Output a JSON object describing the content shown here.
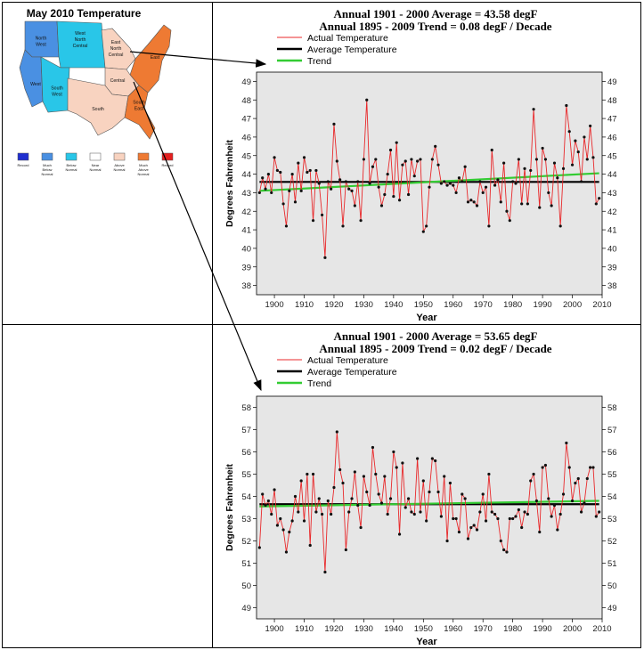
{
  "map": {
    "title": "May 2010 Temperature",
    "regions": [
      {
        "label": "North West",
        "color": "#4a90e2"
      },
      {
        "label": "West North Central",
        "color": "#29c6e8"
      },
      {
        "label": "East North Central",
        "color": "#f8d3c0"
      },
      {
        "label": "East",
        "color": "#ee7a33"
      },
      {
        "label": "West",
        "color": "#4a90e2"
      },
      {
        "label": "South West",
        "color": "#29c6e8"
      },
      {
        "label": "Central",
        "color": "#f8d3c0"
      },
      {
        "label": "South",
        "color": "#f8d3c0"
      },
      {
        "label": "South East",
        "color": "#ee7a33"
      }
    ],
    "legend": [
      {
        "label": "Record",
        "color": "#1f2fcf"
      },
      {
        "label": "Much Below Normal",
        "color": "#4a90e2"
      },
      {
        "label": "Below Normal",
        "color": "#29c6e8"
      },
      {
        "label": "Near Normal",
        "color": "#ffffff"
      },
      {
        "label": "Above Normal",
        "color": "#f8d3c0"
      },
      {
        "label": "Much Above Normal",
        "color": "#ee7a33"
      },
      {
        "label": "Record",
        "color": "#e52020"
      }
    ]
  },
  "chart_data": [
    {
      "type": "line",
      "title_line1": "Annual 1901 - 2000 Average = 43.58 degF",
      "title_line2": "Annual 1895 - 2009 Trend = 0.08 degF / Decade",
      "xlabel": "Year",
      "ylabel": "Degrees Fahrenheit",
      "xlim": [
        1894,
        2010
      ],
      "ylim": [
        37.5,
        49.5
      ],
      "xticks": [
        1900,
        1910,
        1920,
        1930,
        1940,
        1950,
        1960,
        1970,
        1980,
        1990,
        2000,
        2010
      ],
      "yticks": [
        38,
        39,
        40,
        41,
        42,
        43,
        44,
        45,
        46,
        47,
        48,
        49
      ],
      "legend": [
        "Actual Temperature",
        "Average Temperature",
        "Trend"
      ],
      "colors": {
        "actual": "#e8292b",
        "average": "#000000",
        "trend": "#33cc33",
        "plot_bg": "#e6e6e6"
      },
      "x": [
        1895,
        1896,
        1897,
        1898,
        1899,
        1900,
        1901,
        1902,
        1903,
        1904,
        1905,
        1906,
        1907,
        1908,
        1909,
        1910,
        1911,
        1912,
        1913,
        1914,
        1915,
        1916,
        1917,
        1918,
        1919,
        1920,
        1921,
        1922,
        1923,
        1924,
        1925,
        1926,
        1927,
        1928,
        1929,
        1930,
        1931,
        1932,
        1933,
        1934,
        1935,
        1936,
        1937,
        1938,
        1939,
        1940,
        1941,
        1942,
        1943,
        1944,
        1945,
        1946,
        1947,
        1948,
        1949,
        1950,
        1951,
        1952,
        1953,
        1954,
        1955,
        1956,
        1957,
        1958,
        1959,
        1960,
        1961,
        1962,
        1963,
        1964,
        1965,
        1966,
        1967,
        1968,
        1969,
        1970,
        1971,
        1972,
        1973,
        1974,
        1975,
        1976,
        1977,
        1978,
        1979,
        1980,
        1981,
        1982,
        1983,
        1984,
        1985,
        1986,
        1987,
        1988,
        1989,
        1990,
        1991,
        1992,
        1993,
        1994,
        1995,
        1996,
        1997,
        1998,
        1999,
        2000,
        2001,
        2002,
        2003,
        2004,
        2005,
        2006,
        2007,
        2008,
        2009
      ],
      "series": [
        {
          "name": "Actual Temperature",
          "values": [
            43.0,
            43.8,
            43.2,
            44.0,
            43.0,
            44.9,
            44.2,
            44.1,
            42.4,
            41.2,
            43.1,
            44.0,
            42.5,
            44.6,
            43.1,
            44.9,
            44.1,
            44.2,
            41.5,
            44.2,
            43.5,
            41.8,
            39.5,
            43.6,
            43.2,
            46.7,
            44.7,
            43.7,
            41.2,
            43.6,
            43.2,
            43.1,
            42.3,
            43.6,
            41.5,
            44.8,
            48.0,
            43.5,
            44.4,
            44.8,
            43.3,
            42.3,
            42.9,
            44.0,
            45.3,
            42.8,
            45.7,
            42.6,
            44.5,
            44.7,
            42.9,
            44.8,
            43.9,
            44.7,
            44.8,
            40.9,
            41.2,
            43.3,
            44.8,
            45.5,
            44.5,
            43.5,
            43.6,
            43.4,
            43.5,
            43.4,
            43.0,
            43.8,
            43.6,
            44.4,
            42.5,
            42.6,
            42.5,
            42.3,
            43.6,
            43.0,
            43.3,
            41.2,
            45.3,
            43.4,
            43.7,
            42.5,
            44.6,
            42.0,
            41.5,
            43.6,
            43.5,
            44.8,
            42.4,
            44.3,
            42.4,
            44.2,
            47.5,
            44.8,
            42.2,
            45.4,
            44.8,
            43.0,
            42.3,
            44.6,
            43.8,
            41.2,
            44.3,
            47.7,
            46.3,
            44.5,
            45.8,
            45.2,
            43.6,
            46.0,
            44.8,
            46.6,
            44.9,
            42.4,
            42.7
          ]
        },
        {
          "name": "Average Temperature",
          "value": 43.58
        },
        {
          "name": "Trend",
          "start": 43.1,
          "end": 44.05
        }
      ]
    },
    {
      "type": "line",
      "title_line1": "Annual 1901 - 2000 Average = 53.65 degF",
      "title_line2": "Annual 1895 - 2009 Trend = 0.02 degF / Decade",
      "xlabel": "Year",
      "ylabel": "Degrees Fahrenheit",
      "xlim": [
        1894,
        2010
      ],
      "ylim": [
        48.5,
        58.5
      ],
      "xticks": [
        1900,
        1910,
        1920,
        1930,
        1940,
        1950,
        1960,
        1970,
        1980,
        1990,
        2000,
        2010
      ],
      "yticks": [
        49,
        50,
        51,
        52,
        53,
        54,
        55,
        56,
        57,
        58
      ],
      "legend": [
        "Actual Temperature",
        "Average Temperature",
        "Trend"
      ],
      "colors": {
        "actual": "#e8292b",
        "average": "#000000",
        "trend": "#33cc33",
        "plot_bg": "#e6e6e6"
      },
      "x": [
        1895,
        1896,
        1897,
        1898,
        1899,
        1900,
        1901,
        1902,
        1903,
        1904,
        1905,
        1906,
        1907,
        1908,
        1909,
        1910,
        1911,
        1912,
        1913,
        1914,
        1915,
        1916,
        1917,
        1918,
        1919,
        1920,
        1921,
        1922,
        1923,
        1924,
        1925,
        1926,
        1927,
        1928,
        1929,
        1930,
        1931,
        1932,
        1933,
        1934,
        1935,
        1936,
        1937,
        1938,
        1939,
        1940,
        1941,
        1942,
        1943,
        1944,
        1945,
        1946,
        1947,
        1948,
        1949,
        1950,
        1951,
        1952,
        1953,
        1954,
        1955,
        1956,
        1957,
        1958,
        1959,
        1960,
        1961,
        1962,
        1963,
        1964,
        1965,
        1966,
        1967,
        1968,
        1969,
        1970,
        1971,
        1972,
        1973,
        1974,
        1975,
        1976,
        1977,
        1978,
        1979,
        1980,
        1981,
        1982,
        1983,
        1984,
        1985,
        1986,
        1987,
        1988,
        1989,
        1990,
        1991,
        1992,
        1993,
        1994,
        1995,
        1996,
        1997,
        1998,
        1999,
        2000,
        2001,
        2002,
        2003,
        2004,
        2005,
        2006,
        2007,
        2008,
        2009
      ],
      "series": [
        {
          "name": "Actual Temperature",
          "values": [
            51.7,
            54.1,
            53.6,
            53.8,
            53.2,
            54.3,
            52.7,
            53.0,
            52.5,
            51.5,
            52.4,
            52.9,
            54.0,
            53.3,
            54.7,
            52.9,
            55.0,
            51.8,
            55.0,
            53.3,
            53.9,
            53.2,
            50.6,
            53.8,
            53.2,
            54.4,
            56.9,
            55.2,
            54.6,
            51.6,
            53.3,
            53.9,
            55.1,
            53.6,
            52.6,
            54.9,
            54.2,
            53.6,
            56.2,
            55.0,
            54.1,
            53.7,
            54.9,
            53.2,
            53.9,
            56.0,
            55.3,
            52.3,
            55.5,
            53.5,
            53.9,
            53.3,
            53.2,
            55.7,
            53.3,
            54.7,
            52.9,
            54.2,
            55.7,
            55.6,
            54.2,
            53.1,
            54.9,
            52.0,
            54.6,
            53.0,
            53.0,
            52.4,
            54.1,
            53.9,
            52.1,
            52.6,
            52.7,
            52.5,
            53.3,
            54.1,
            52.9,
            55.0,
            53.3,
            53.2,
            53.0,
            52.0,
            51.6,
            51.5,
            53.0,
            53.0,
            53.1,
            53.4,
            52.6,
            53.3,
            53.2,
            54.7,
            55.0,
            53.8,
            52.4,
            55.3,
            55.4,
            53.9,
            53.1,
            53.6,
            52.5,
            53.2,
            54.1,
            56.4,
            55.3,
            53.8,
            54.6,
            54.8,
            53.3,
            53.7,
            54.8,
            55.3,
            55.3,
            53.1,
            53.3
          ]
        },
        {
          "name": "Average Temperature",
          "value": 53.65
        },
        {
          "name": "Trend",
          "start": 53.55,
          "end": 53.8
        }
      ]
    }
  ]
}
